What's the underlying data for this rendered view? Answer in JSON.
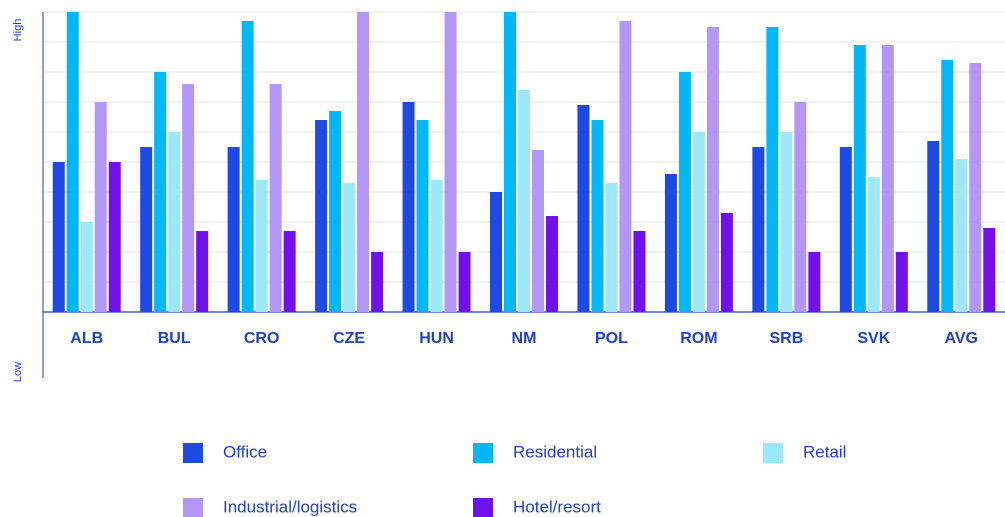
{
  "chart_data": {
    "type": "bar",
    "y_labels": {
      "high": "High",
      "low": "Low"
    },
    "categories": [
      "ALB",
      "BUL",
      "CRO",
      "CZE",
      "HUN",
      "NM",
      "POL",
      "ROM",
      "SRB",
      "SVK",
      "AVG"
    ],
    "series": [
      {
        "name": "Office",
        "color": "#1e49e2",
        "values": [
          5,
          5.5,
          5.5,
          6.4,
          7,
          4,
          6.9,
          4.6,
          5.5,
          5.5,
          5.7
        ]
      },
      {
        "name": "Residential",
        "color": "#00b8f5",
        "values": [
          10,
          8,
          9.7,
          6.7,
          6.4,
          10,
          6.4,
          8,
          9.5,
          8.9,
          8.4
        ]
      },
      {
        "name": "Retail",
        "color": "#9de8f8",
        "values": [
          3,
          6,
          4.4,
          4.3,
          4.4,
          7.4,
          4.3,
          6,
          6,
          4.5,
          5.1
        ]
      },
      {
        "name": "Industrial/logistics",
        "color": "#b497f4",
        "values": [
          7,
          7.6,
          7.6,
          10,
          10,
          5.4,
          9.7,
          9.5,
          7,
          8.9,
          8.3
        ]
      },
      {
        "name": "Hotel/resort",
        "color": "#7210ea",
        "values": [
          5,
          2.7,
          2.7,
          2,
          2,
          3.2,
          2.7,
          3.3,
          2,
          2,
          2.8
        ]
      }
    ],
    "ylim": [
      -2.2,
      10
    ],
    "yticks": [
      0,
      1,
      2,
      3,
      4,
      5,
      6,
      7,
      8,
      9,
      10
    ],
    "grid": true
  }
}
